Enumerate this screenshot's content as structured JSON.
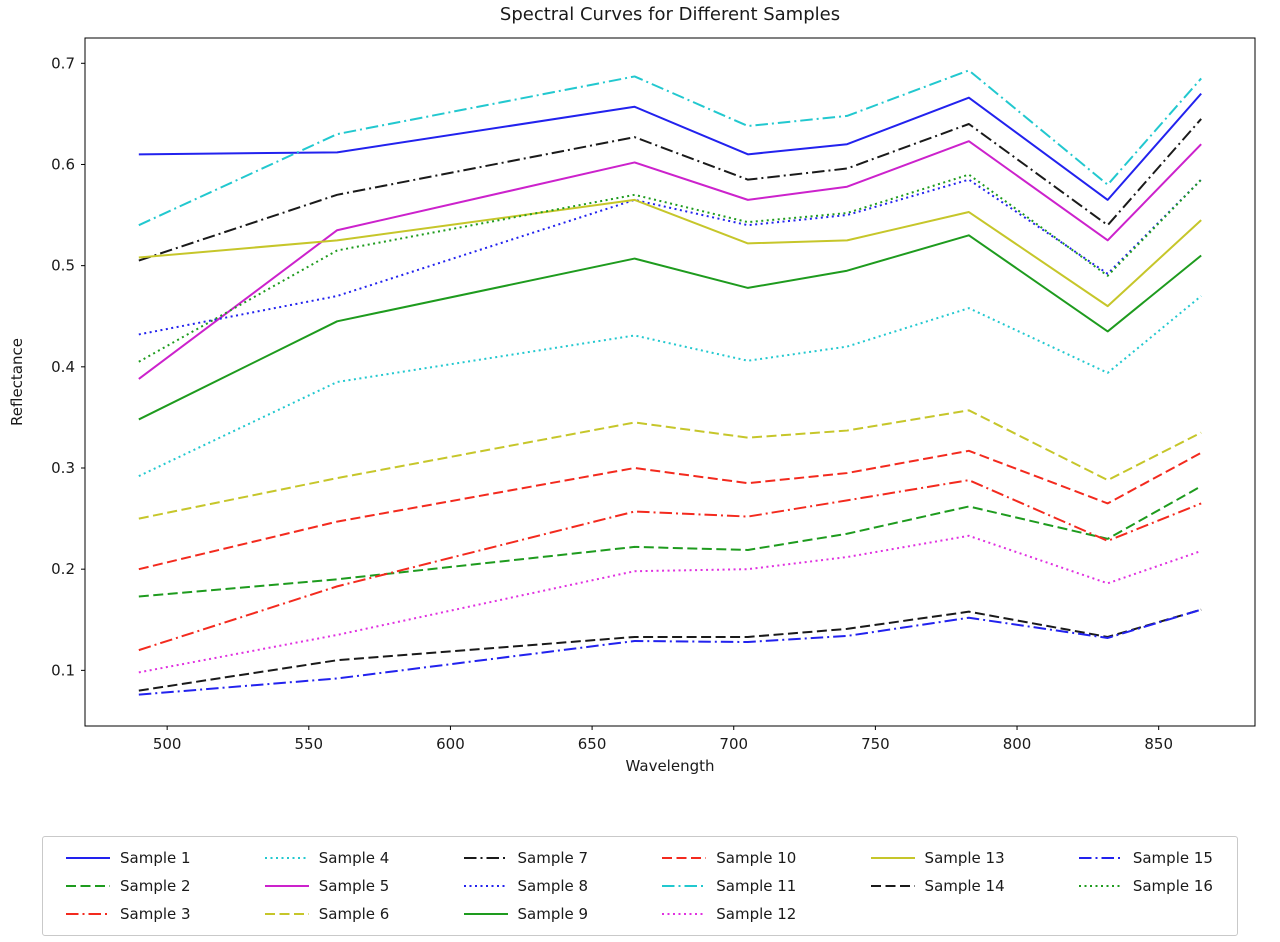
{
  "chart_data": {
    "type": "line",
    "title": "Spectral Curves for Different Samples",
    "xlabel": "Wavelength",
    "ylabel": "Reflectance",
    "xlim": [
      471,
      884
    ],
    "ylim": [
      0.045,
      0.725
    ],
    "xticks": [
      500,
      550,
      600,
      650,
      700,
      750,
      800,
      850
    ],
    "yticks": [
      0.1,
      0.2,
      0.3,
      0.4,
      0.5,
      0.6,
      0.7
    ],
    "grid": false,
    "legend_position": "bottom",
    "legend_ncol": 6,
    "x": [
      490,
      560,
      665,
      705,
      740,
      783,
      832,
      865
    ],
    "series": [
      {
        "name": "Sample 1",
        "color": "#2222ee",
        "linestyle": "solid",
        "values": [
          0.61,
          0.612,
          0.657,
          0.61,
          0.62,
          0.666,
          0.565,
          0.67
        ]
      },
      {
        "name": "Sample 2",
        "color": "#1e9b1e",
        "linestyle": "dashed",
        "values": [
          0.173,
          0.19,
          0.222,
          0.219,
          0.235,
          0.262,
          0.23,
          0.282
        ]
      },
      {
        "name": "Sample 3",
        "color": "#f32a1e",
        "linestyle": "dashdot",
        "values": [
          0.12,
          0.183,
          0.257,
          0.252,
          0.268,
          0.288,
          0.228,
          0.265
        ]
      },
      {
        "name": "Sample 4",
        "color": "#22c8cf",
        "linestyle": "dotted",
        "values": [
          0.292,
          0.385,
          0.431,
          0.406,
          0.42,
          0.458,
          0.394,
          0.47
        ]
      },
      {
        "name": "Sample 5",
        "color": "#cc22cc",
        "linestyle": "solid",
        "values": [
          0.388,
          0.535,
          0.602,
          0.565,
          0.578,
          0.623,
          0.525,
          0.62
        ]
      },
      {
        "name": "Sample 6",
        "color": "#c6c62a",
        "linestyle": "dashed",
        "values": [
          0.25,
          0.29,
          0.345,
          0.33,
          0.337,
          0.357,
          0.288,
          0.335
        ]
      },
      {
        "name": "Sample 7",
        "color": "#1a1a1a",
        "linestyle": "dashdot",
        "values": [
          0.505,
          0.57,
          0.627,
          0.585,
          0.596,
          0.64,
          0.54,
          0.645
        ]
      },
      {
        "name": "Sample 8",
        "color": "#2222ee",
        "linestyle": "dotted",
        "values": [
          0.432,
          0.47,
          0.565,
          0.54,
          0.55,
          0.585,
          0.492,
          0.585
        ]
      },
      {
        "name": "Sample 9",
        "color": "#1e9b1e",
        "linestyle": "solid",
        "values": [
          0.348,
          0.445,
          0.507,
          0.478,
          0.495,
          0.53,
          0.435,
          0.51
        ]
      },
      {
        "name": "Sample 10",
        "color": "#f32a1e",
        "linestyle": "dashed",
        "values": [
          0.2,
          0.247,
          0.3,
          0.285,
          0.295,
          0.317,
          0.265,
          0.315
        ]
      },
      {
        "name": "Sample 11",
        "color": "#22c8cf",
        "linestyle": "dashdot",
        "values": [
          0.54,
          0.63,
          0.687,
          0.638,
          0.648,
          0.693,
          0.58,
          0.685
        ]
      },
      {
        "name": "Sample 12",
        "color": "#e030e0",
        "linestyle": "dotted",
        "values": [
          0.098,
          0.135,
          0.198,
          0.2,
          0.212,
          0.233,
          0.186,
          0.218
        ]
      },
      {
        "name": "Sample 13",
        "color": "#c6c62a",
        "linestyle": "solid",
        "values": [
          0.508,
          0.525,
          0.565,
          0.522,
          0.525,
          0.553,
          0.46,
          0.545
        ]
      },
      {
        "name": "Sample 14",
        "color": "#1a1a1a",
        "linestyle": "dashed",
        "values": [
          0.08,
          0.11,
          0.133,
          0.133,
          0.141,
          0.158,
          0.133,
          0.16
        ]
      },
      {
        "name": "Sample 15",
        "color": "#2222ee",
        "linestyle": "dashdot",
        "values": [
          0.076,
          0.092,
          0.129,
          0.128,
          0.134,
          0.152,
          0.132,
          0.16
        ]
      },
      {
        "name": "Sample 16",
        "color": "#1e9b1e",
        "linestyle": "dotted",
        "values": [
          0.405,
          0.515,
          0.57,
          0.543,
          0.552,
          0.59,
          0.49,
          0.585
        ]
      }
    ]
  }
}
